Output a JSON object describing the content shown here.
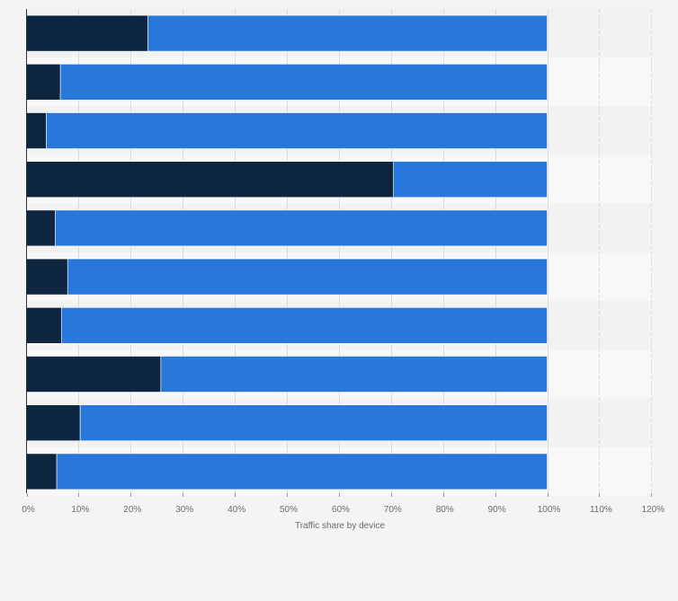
{
  "chart_data": {
    "type": "bar",
    "orientation": "horizontal",
    "stacked": true,
    "title": "",
    "xlabel": "Traffic share by device",
    "ylabel": "",
    "xlim": [
      0,
      120
    ],
    "x_ticks": [
      0,
      10,
      20,
      30,
      40,
      50,
      60,
      70,
      80,
      90,
      100,
      110,
      120
    ],
    "tick_format": "{v}%",
    "grid": true,
    "legend": "none",
    "categories": [
      "",
      "",
      "",
      "",
      "",
      "",
      "",
      "",
      "",
      ""
    ],
    "series": [
      {
        "color": "#0f2640",
        "values": [
          23.3,
          6.5,
          3.8,
          70.5,
          5.5,
          7.9,
          6.7,
          25.8,
          10.3,
          5.8
        ]
      },
      {
        "color": "#2878dc",
        "values": [
          76.7,
          93.5,
          96.2,
          29.5,
          94.5,
          92.1,
          93.3,
          74.2,
          89.7,
          94.2
        ]
      }
    ]
  }
}
